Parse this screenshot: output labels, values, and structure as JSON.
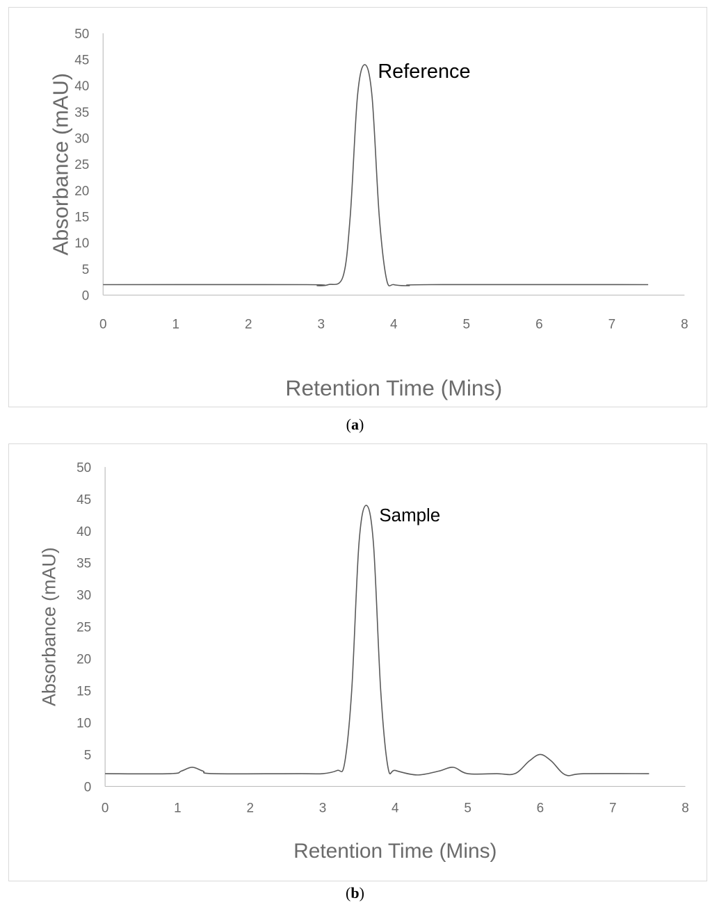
{
  "chart_data": [
    {
      "panel": "a",
      "type": "line",
      "caption_open": "(",
      "caption_letter": "a",
      "caption_close": ")",
      "xlabel": "Retention Time (Mins)",
      "ylabel": "Absorbance (mAU)",
      "xlim": [
        0,
        8
      ],
      "ylim": [
        0,
        50
      ],
      "xticks": [
        0,
        1,
        2,
        3,
        4,
        5,
        6,
        7,
        8
      ],
      "yticks": [
        0,
        5,
        10,
        15,
        20,
        25,
        30,
        35,
        40,
        45,
        50
      ],
      "grid": false,
      "line_color": "#595959",
      "annotation": {
        "text": "Reference",
        "x": 3.78,
        "y": 41.5
      },
      "series": [
        {
          "x": [
            0,
            2.8,
            2.95,
            3.1,
            3.3,
            3.4,
            3.5,
            3.6,
            3.7,
            3.8,
            3.9,
            4.0,
            4.2,
            4.5,
            7.5
          ],
          "y": [
            2,
            2,
            1.8,
            2,
            3.5,
            15,
            38,
            44,
            38,
            15,
            3,
            2,
            1.8,
            2,
            2
          ]
        }
      ]
    },
    {
      "panel": "b",
      "type": "line",
      "caption_open": "(",
      "caption_letter": "b",
      "caption_close": ")",
      "xlabel": "Retention Time (Mins)",
      "ylabel": "Absorbance (mAU)",
      "xlim": [
        0,
        8
      ],
      "ylim": [
        0,
        50
      ],
      "xticks": [
        0,
        1,
        2,
        3,
        4,
        5,
        6,
        7,
        8
      ],
      "yticks": [
        0,
        5,
        10,
        15,
        20,
        25,
        30,
        35,
        40,
        45,
        50
      ],
      "grid": false,
      "line_color": "#595959",
      "annotation": {
        "text": "Sample",
        "x": 3.78,
        "y": 41.5
      },
      "series": [
        {
          "x": [
            0,
            0.9,
            1.05,
            1.2,
            1.35,
            1.5,
            2.7,
            3.0,
            3.2,
            3.3,
            3.4,
            3.5,
            3.6,
            3.7,
            3.8,
            3.9,
            4.0,
            4.3,
            4.6,
            4.8,
            5.0,
            5.4,
            5.65,
            5.85,
            6.0,
            6.15,
            6.35,
            6.6,
            7.5
          ],
          "y": [
            2,
            2,
            2.4,
            3,
            2.4,
            2,
            2,
            2,
            2.5,
            3.5,
            15,
            38,
            44,
            38,
            15,
            3,
            2.5,
            1.8,
            2.4,
            3,
            2,
            2,
            2,
            4,
            5,
            4,
            1.8,
            2,
            2
          ]
        }
      ]
    }
  ]
}
